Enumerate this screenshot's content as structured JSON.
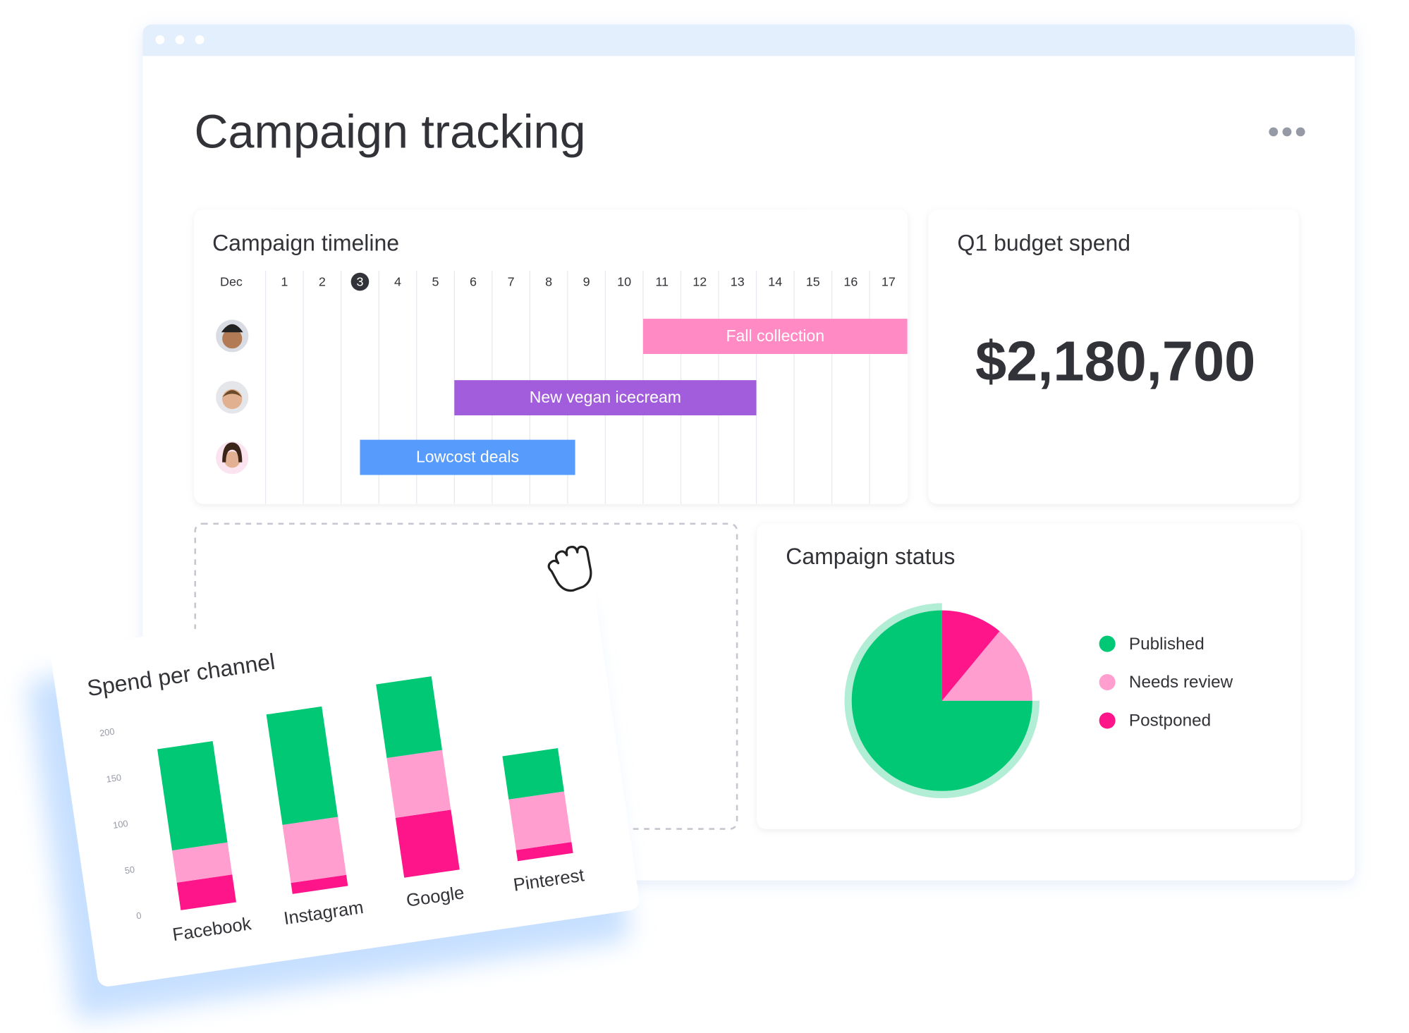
{
  "title": "Campaign tracking",
  "timeline": {
    "title": "Campaign timeline",
    "month": "Dec",
    "days": [
      1,
      2,
      3,
      4,
      5,
      6,
      7,
      8,
      9,
      10,
      11,
      12,
      13,
      14,
      15,
      16,
      17
    ],
    "today": 3,
    "bars": [
      {
        "label": "Fall collection",
        "start": 11,
        "end": 18,
        "color": "#ff8ac4"
      },
      {
        "label": "New vegan icecream",
        "start": 6,
        "end": 14,
        "color": "#a25ddc"
      },
      {
        "label": "Lowcost deals",
        "start": 3.5,
        "end": 9.2,
        "color": "#579bfc"
      }
    ]
  },
  "budget": {
    "title": "Q1 budget spend",
    "value": "$2,180,700"
  },
  "chart_data": [
    {
      "type": "bar",
      "stacked": true,
      "title": "Spend per channel",
      "categories": [
        "Facebook",
        "Instagram",
        "Google",
        "Pinterest"
      ],
      "series": [
        {
          "color": "#ff158a",
          "values": [
            30,
            12,
            65,
            12
          ]
        },
        {
          "color": "#ff9ecf",
          "values": [
            35,
            63,
            65,
            55
          ]
        },
        {
          "color": "#00c875",
          "values": [
            110,
            120,
            80,
            47
          ]
        }
      ],
      "ylim": [
        0,
        200
      ],
      "yticks": [
        0,
        50,
        100,
        150,
        200
      ]
    },
    {
      "type": "pie",
      "title": "Campaign status",
      "categories": [
        "Published",
        "Needs review",
        "Postponed"
      ],
      "values": [
        75,
        14,
        11
      ],
      "colors": [
        "#00c875",
        "#ff9ecf",
        "#ff158a"
      ]
    }
  ]
}
